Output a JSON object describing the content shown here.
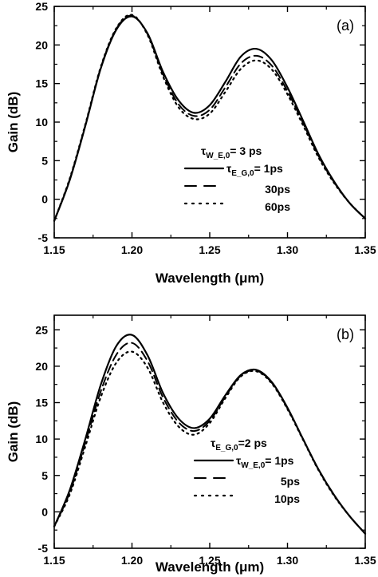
{
  "chart_data": [
    {
      "type": "line",
      "panel_label": "(a)",
      "xlabel": "Wavelength (μm)",
      "ylabel": "Gain (dB)",
      "xlim": [
        1.15,
        1.35
      ],
      "ylim": [
        -5,
        25
      ],
      "x_ticks": [
        "1.15",
        "1.20",
        "1.25",
        "1.30",
        "1.35"
      ],
      "y_ticks": [
        "-5",
        "0",
        "5",
        "10",
        "15",
        "20",
        "25"
      ],
      "legend_position": "center-right",
      "legend_header": {
        "symbol": "τ",
        "sub": "W_E,0",
        "text": "= 3 ps"
      },
      "legend_entries": [
        {
          "symbol": "τ",
          "sub": "E_G,0",
          "text": "=  1ps",
          "line": "solid"
        },
        {
          "text": "30ps",
          "line": "dashed"
        },
        {
          "text": "60ps",
          "line": "dotted"
        }
      ],
      "series": [
        {
          "line": "solid",
          "x": [
            1.15,
            1.16,
            1.17,
            1.18,
            1.19,
            1.2,
            1.21,
            1.22,
            1.23,
            1.24,
            1.25,
            1.26,
            1.27,
            1.28,
            1.29,
            1.3,
            1.31,
            1.32,
            1.33,
            1.34,
            1.35
          ],
          "y": [
            -2.8,
            2.5,
            9.5,
            17.0,
            22.0,
            23.7,
            21.5,
            16.5,
            12.8,
            11.2,
            12.2,
            15.2,
            18.5,
            19.5,
            18.0,
            14.5,
            10.2,
            5.8,
            2.3,
            -0.5,
            -2.5
          ]
        },
        {
          "line": "dashed",
          "x": [
            1.15,
            1.16,
            1.17,
            1.18,
            1.19,
            1.2,
            1.21,
            1.22,
            1.23,
            1.24,
            1.25,
            1.26,
            1.27,
            1.28,
            1.29,
            1.3,
            1.31,
            1.32,
            1.33,
            1.34,
            1.35
          ],
          "y": [
            -2.8,
            2.6,
            9.6,
            17.1,
            22.1,
            23.8,
            21.4,
            16.2,
            12.3,
            10.8,
            11.6,
            14.5,
            17.6,
            18.6,
            17.3,
            14.0,
            9.9,
            5.6,
            2.2,
            -0.5,
            -2.5
          ]
        },
        {
          "line": "dotted",
          "x": [
            1.15,
            1.16,
            1.17,
            1.18,
            1.19,
            1.2,
            1.21,
            1.22,
            1.23,
            1.24,
            1.25,
            1.26,
            1.27,
            1.28,
            1.29,
            1.3,
            1.31,
            1.32,
            1.33,
            1.34,
            1.35
          ],
          "y": [
            -2.8,
            2.7,
            9.7,
            17.2,
            22.2,
            23.9,
            21.3,
            15.9,
            11.9,
            10.4,
            11.1,
            13.9,
            16.9,
            18.0,
            16.8,
            13.6,
            9.6,
            5.4,
            2.1,
            -0.5,
            -2.5
          ]
        }
      ]
    },
    {
      "type": "line",
      "panel_label": "(b)",
      "xlabel": "Wavelength (μm)",
      "ylabel": "Gain (dB)",
      "xlim": [
        1.15,
        1.35
      ],
      "ylim": [
        -5,
        27
      ],
      "x_ticks": [
        "1.15",
        "1.20",
        "1.25",
        "1.30",
        "1.35"
      ],
      "y_ticks": [
        "-5",
        "0",
        "5",
        "10",
        "15",
        "20",
        "25"
      ],
      "legend_position": "center-right",
      "legend_header": {
        "symbol": "τ",
        "sub": "E_G,0",
        "text": "=2 ps"
      },
      "legend_entries": [
        {
          "symbol": "τ",
          "sub": "W_E,0",
          "text": "=  1ps",
          "line": "solid"
        },
        {
          "text": "5ps",
          "line": "dashed"
        },
        {
          "text": "10ps",
          "line": "dotted"
        }
      ],
      "series": [
        {
          "line": "solid",
          "x": [
            1.15,
            1.16,
            1.17,
            1.18,
            1.19,
            1.2,
            1.21,
            1.22,
            1.23,
            1.24,
            1.25,
            1.26,
            1.27,
            1.28,
            1.29,
            1.3,
            1.31,
            1.32,
            1.33,
            1.34,
            1.35
          ],
          "y": [
            -2.0,
            3.0,
            10.0,
            17.5,
            22.8,
            24.3,
            21.5,
            16.3,
            12.8,
            11.5,
            12.8,
            16.0,
            18.8,
            19.5,
            17.8,
            14.3,
            10.0,
            5.8,
            2.3,
            -0.6,
            -3.0
          ]
        },
        {
          "line": "dashed",
          "x": [
            1.15,
            1.16,
            1.17,
            1.18,
            1.19,
            1.2,
            1.21,
            1.22,
            1.23,
            1.24,
            1.25,
            1.26,
            1.27,
            1.28,
            1.29,
            1.3,
            1.31,
            1.32,
            1.33,
            1.34,
            1.35
          ],
          "y": [
            -2.0,
            2.7,
            9.5,
            16.6,
            21.6,
            23.2,
            20.7,
            15.7,
            12.3,
            11.1,
            12.5,
            15.8,
            18.7,
            19.4,
            17.7,
            14.2,
            10.0,
            5.8,
            2.3,
            -0.6,
            -3.0
          ]
        },
        {
          "line": "dotted",
          "x": [
            1.15,
            1.16,
            1.17,
            1.18,
            1.19,
            1.2,
            1.21,
            1.22,
            1.23,
            1.24,
            1.25,
            1.26,
            1.27,
            1.28,
            1.29,
            1.3,
            1.31,
            1.32,
            1.33,
            1.34,
            1.35
          ],
          "y": [
            -2.0,
            2.4,
            9.0,
            15.8,
            20.5,
            22.0,
            19.8,
            15.0,
            11.7,
            10.6,
            12.2,
            15.6,
            18.6,
            19.3,
            17.6,
            14.1,
            9.9,
            5.7,
            2.2,
            -0.6,
            -3.0
          ]
        }
      ]
    }
  ]
}
